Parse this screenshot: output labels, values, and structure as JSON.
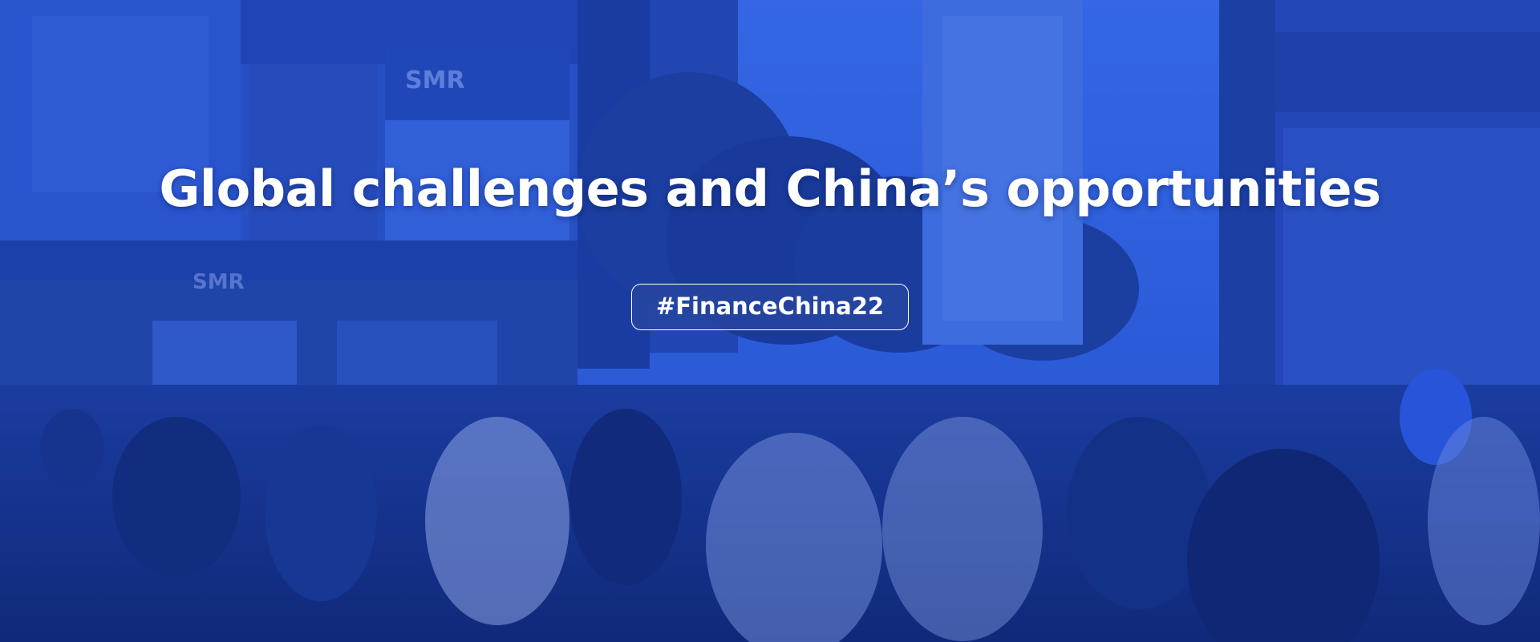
{
  "banner": {
    "headline": "Global challenges and China’s opportunities",
    "hashtag": "#FinanceChina22",
    "photo": "crowd-street-shopping-district",
    "storefront_signs": [
      "SMR",
      "SMR"
    ],
    "colors": {
      "overlay": "#1e46c8",
      "headline_text": "#ffffff",
      "hashtag_bg": "#2646a0",
      "hashtag_border": "#ffffff"
    }
  }
}
